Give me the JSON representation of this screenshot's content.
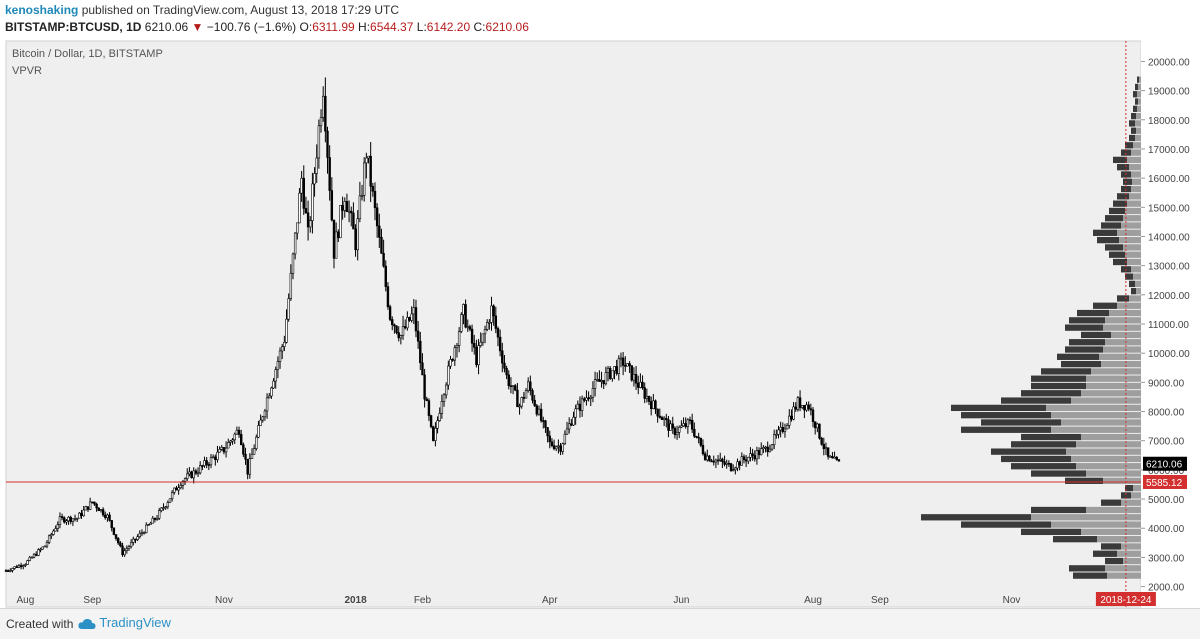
{
  "header": {
    "user": "kenoshaking",
    "published_text": "published on TradingView.com, August 13, 2018 17:29 UTC",
    "symbol": "BITSTAMP:BTCUSD, 1D",
    "price": "6210.06",
    "change_arrow": "▼",
    "change": "−100.76 (−1.6%)",
    "o_label": "O:",
    "o": "6311.99",
    "h_label": "H:",
    "h": "6544.37",
    "l_label": "L:",
    "l": "6142.20",
    "c_label": "C:",
    "c": "6210.06"
  },
  "footer": {
    "created_with": "Created with",
    "brand": "TradingView"
  },
  "colors": {
    "background": "#efefef",
    "candle": "#000000",
    "hline": "#d32f2f",
    "vp_up": "#9e9e9e",
    "vp_down": "#3a3a3a",
    "current_label_bg": "#000000",
    "level_label_bg": "#d32f2f"
  },
  "chart_data": {
    "type": "candlestick",
    "title": "Bitcoin / Dollar, 1D, BITSTAMP",
    "indicator": "VPVR",
    "x_start": "2017-07-23",
    "x_end": "2018-12-31",
    "x_tick_labels": [
      {
        "label": "Aug",
        "date": "2017-08-01"
      },
      {
        "label": "Sep",
        "date": "2017-09-01"
      },
      {
        "label": "Nov",
        "date": "2017-11-01"
      },
      {
        "label": "2018",
        "date": "2018-01-01"
      },
      {
        "label": "Feb",
        "date": "2018-02-01"
      },
      {
        "label": "Apr",
        "date": "2018-04-01"
      },
      {
        "label": "Jun",
        "date": "2018-06-01"
      },
      {
        "label": "Aug",
        "date": "2018-08-01"
      },
      {
        "label": "Sep",
        "date": "2018-09-01"
      },
      {
        "label": "Nov",
        "date": "2018-11-01"
      }
    ],
    "y_ticks": [
      2000,
      3000,
      4000,
      5000,
      6000,
      7000,
      8000,
      9000,
      10000,
      11000,
      12000,
      13000,
      14000,
      15000,
      16000,
      17000,
      18000,
      19000,
      20000
    ],
    "y_tick_labels": [
      "2000.00",
      "3000.00",
      "4000.00",
      "5000.00",
      "6000.00",
      "7000.00",
      "8000.00",
      "9000.00",
      "10000.00",
      "11000.00",
      "12000.00",
      "13000.00",
      "14000.00",
      "15000.00",
      "16000.00",
      "17000.00",
      "18000.00",
      "19000.00",
      "20000.00"
    ],
    "ylim": [
      1300,
      20700
    ],
    "current_price": 6210.06,
    "current_price_label": "6210.06",
    "hline": {
      "value": 5585.12,
      "label": "5585.12"
    },
    "vline": {
      "date": "2018-12-24",
      "label": "2018-12-24"
    },
    "price_path": [
      [
        "2017-07-23",
        2550
      ],
      [
        "2017-08-01",
        2800
      ],
      [
        "2017-08-10",
        3400
      ],
      [
        "2017-08-17",
        4300
      ],
      [
        "2017-08-25",
        4350
      ],
      [
        "2017-09-01",
        4900
      ],
      [
        "2017-09-08",
        4400
      ],
      [
        "2017-09-15",
        3150
      ],
      [
        "2017-09-22",
        3700
      ],
      [
        "2017-10-01",
        4400
      ],
      [
        "2017-10-12",
        5600
      ],
      [
        "2017-10-20",
        6000
      ],
      [
        "2017-11-01",
        6700
      ],
      [
        "2017-11-08",
        7400
      ],
      [
        "2017-11-12",
        5950
      ],
      [
        "2017-11-20",
        8200
      ],
      [
        "2017-11-29",
        10500
      ],
      [
        "2017-12-07",
        16000
      ],
      [
        "2017-12-10",
        14000
      ],
      [
        "2017-12-17",
        19200
      ],
      [
        "2017-12-22",
        13500
      ],
      [
        "2017-12-27",
        15500
      ],
      [
        "2018-01-01",
        13800
      ],
      [
        "2018-01-06",
        16900
      ],
      [
        "2018-01-12",
        13800
      ],
      [
        "2018-01-17",
        11300
      ],
      [
        "2018-01-22",
        10600
      ],
      [
        "2018-01-28",
        11400
      ],
      [
        "2018-02-02",
        8600
      ],
      [
        "2018-02-06",
        6900
      ],
      [
        "2018-02-10",
        8500
      ],
      [
        "2018-02-20",
        11400
      ],
      [
        "2018-02-26",
        9800
      ],
      [
        "2018-03-05",
        11500
      ],
      [
        "2018-03-12",
        9200
      ],
      [
        "2018-03-18",
        8200
      ],
      [
        "2018-03-22",
        8900
      ],
      [
        "2018-04-01",
        6900
      ],
      [
        "2018-04-06",
        6800
      ],
      [
        "2018-04-12",
        7900
      ],
      [
        "2018-04-22",
        8900
      ],
      [
        "2018-05-05",
        9700
      ],
      [
        "2018-05-15",
        8600
      ],
      [
        "2018-05-28",
        7300
      ],
      [
        "2018-06-05",
        7600
      ],
      [
        "2018-06-12",
        6500
      ],
      [
        "2018-06-24",
        6100
      ],
      [
        "2018-07-01",
        6400
      ],
      [
        "2018-07-10",
        6700
      ],
      [
        "2018-07-17",
        7300
      ],
      [
        "2018-07-25",
        8300
      ],
      [
        "2018-07-30",
        8200
      ],
      [
        "2018-08-08",
        6400
      ],
      [
        "2018-08-13",
        6210
      ]
    ],
    "volume_profile": {
      "bin_size": 250,
      "bins": [
        [
          2250,
          34,
          34
        ],
        [
          2500,
          36,
          36
        ],
        [
          2750,
          18,
          18
        ],
        [
          3000,
          24,
          24
        ],
        [
          3250,
          20,
          20
        ],
        [
          3500,
          44,
          44
        ],
        [
          3750,
          60,
          60
        ],
        [
          4000,
          90,
          90
        ],
        [
          4250,
          110,
          110
        ],
        [
          4500,
          55,
          55
        ],
        [
          4750,
          20,
          20
        ],
        [
          5000,
          10,
          10
        ],
        [
          5250,
          8,
          8
        ],
        [
          5500,
          38,
          38
        ],
        [
          5750,
          55,
          55
        ],
        [
          6000,
          65,
          65
        ],
        [
          6250,
          70,
          70
        ],
        [
          6500,
          75,
          75
        ],
        [
          6750,
          65,
          65
        ],
        [
          7000,
          60,
          60
        ],
        [
          7250,
          90,
          90
        ],
        [
          7500,
          80,
          80
        ],
        [
          7750,
          90,
          90
        ],
        [
          8000,
          95,
          95
        ],
        [
          8250,
          70,
          70
        ],
        [
          8500,
          60,
          60
        ],
        [
          8750,
          55,
          55
        ],
        [
          9000,
          55,
          55
        ],
        [
          9250,
          50,
          50
        ],
        [
          9500,
          40,
          40
        ],
        [
          9750,
          42,
          42
        ],
        [
          10000,
          38,
          38
        ],
        [
          10250,
          36,
          36
        ],
        [
          10500,
          30,
          30
        ],
        [
          10750,
          38,
          38
        ],
        [
          11000,
          36,
          36
        ],
        [
          11250,
          32,
          32
        ],
        [
          11500,
          24,
          24
        ],
        [
          11750,
          12,
          12
        ],
        [
          12000,
          5,
          5
        ],
        [
          12250,
          6,
          6
        ],
        [
          12500,
          8,
          8
        ],
        [
          12750,
          10,
          10
        ],
        [
          13000,
          14,
          14
        ],
        [
          13250,
          16,
          16
        ],
        [
          13500,
          18,
          18
        ],
        [
          13750,
          22,
          22
        ],
        [
          14000,
          24,
          24
        ],
        [
          14250,
          20,
          20
        ],
        [
          14500,
          18,
          18
        ],
        [
          14750,
          16,
          16
        ],
        [
          15000,
          14,
          14
        ],
        [
          15250,
          12,
          12
        ],
        [
          15500,
          10,
          10
        ],
        [
          15750,
          9,
          9
        ],
        [
          16000,
          10,
          10
        ],
        [
          16250,
          12,
          12
        ],
        [
          16500,
          14,
          14
        ],
        [
          16750,
          10,
          10
        ],
        [
          17000,
          8,
          8
        ],
        [
          17250,
          6,
          6
        ],
        [
          17500,
          5,
          5
        ],
        [
          17750,
          6,
          6
        ],
        [
          18000,
          5,
          5
        ],
        [
          18250,
          4,
          4
        ],
        [
          18500,
          3,
          3
        ],
        [
          18750,
          4,
          4
        ],
        [
          19000,
          3,
          3
        ],
        [
          19250,
          2,
          2
        ]
      ]
    }
  }
}
